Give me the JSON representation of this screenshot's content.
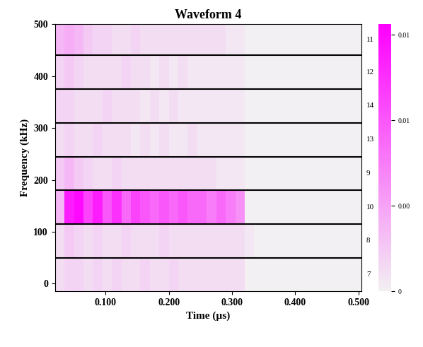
{
  "chart_data": {
    "type": "heatmap",
    "title": "Waveform 4",
    "x_label": "Time (µs)",
    "y_label": "Frequency (kHz)",
    "x_edges": [
      0.02,
      0.035,
      0.05,
      0.065,
      0.08,
      0.095,
      0.11,
      0.125,
      0.14,
      0.155,
      0.17,
      0.185,
      0.2,
      0.215,
      0.23,
      0.245,
      0.26,
      0.275,
      0.29,
      0.305,
      0.32,
      0.335,
      0.35,
      0.365,
      0.38,
      0.395,
      0.41,
      0.425,
      0.44,
      0.455,
      0.47,
      0.485,
      0.505
    ],
    "band_edges": [
      -15,
      50,
      115,
      180,
      245,
      310,
      375,
      440,
      500
    ],
    "band_labels": [
      7,
      8,
      10,
      9,
      13,
      14,
      12,
      11
    ],
    "cells": [
      [
        0.001,
        0.0015,
        0.0015,
        0.001,
        0.0015,
        0.001,
        0.0015,
        0.001,
        0.001,
        0.0015,
        0.001,
        0.001,
        0.0015,
        0.001,
        0.001,
        0.001,
        0.001,
        0.001,
        0.001,
        0.001,
        0,
        0,
        0,
        0,
        0,
        0,
        0,
        0,
        0,
        0,
        0,
        0
      ],
      [
        0.001,
        0.002,
        0.0015,
        0.001,
        0.0015,
        0.001,
        0.001,
        0.0015,
        0.001,
        0.001,
        0.001,
        0.0015,
        0.001,
        0.001,
        0.001,
        0.001,
        0.001,
        0.001,
        0.001,
        0.001,
        0.0005,
        0,
        0,
        0,
        0,
        0,
        0,
        0,
        0,
        0,
        0,
        0
      ],
      [
        0.003,
        0.011,
        0.012,
        0.009,
        0.011,
        0.008,
        0.01,
        0.007,
        0.009,
        0.008,
        0.007,
        0.008,
        0.007,
        0.008,
        0.007,
        0.007,
        0.006,
        0.007,
        0.006,
        0.005,
        0,
        0,
        0,
        0,
        0,
        0,
        0,
        0,
        0,
        0,
        0,
        0
      ],
      [
        0.002,
        0.003,
        0.002,
        0.0015,
        0.001,
        0.001,
        0.0015,
        0.001,
        0.001,
        0.001,
        0.001,
        0.001,
        0.001,
        0.001,
        0.001,
        0.001,
        0.001,
        0.0005,
        0.0005,
        0.0005,
        0,
        0,
        0,
        0,
        0,
        0,
        0,
        0,
        0,
        0,
        0,
        0
      ],
      [
        0.001,
        0.0015,
        0.001,
        0.001,
        0.0015,
        0.001,
        0.001,
        0.001,
        0.0005,
        0.001,
        0.0005,
        0.001,
        0.0005,
        0.0005,
        0.001,
        0.0005,
        0.0005,
        0.0005,
        0.0005,
        0.0005,
        0,
        0,
        0,
        0,
        0,
        0,
        0,
        0,
        0,
        0,
        0,
        0
      ],
      [
        0.0015,
        0.0015,
        0.001,
        0.001,
        0.001,
        0.0015,
        0.001,
        0.001,
        0.001,
        0.0005,
        0.001,
        0.0005,
        0.001,
        0.0005,
        0.0005,
        0.0005,
        0.0005,
        0.0005,
        0.0005,
        0.0005,
        0,
        0,
        0,
        0,
        0,
        0,
        0,
        0,
        0,
        0,
        0,
        0
      ],
      [
        0.0015,
        0.002,
        0.0015,
        0.001,
        0.001,
        0.001,
        0.001,
        0.0015,
        0.001,
        0.001,
        0.0005,
        0.001,
        0.0005,
        0.001,
        0.0005,
        0.0005,
        0.0005,
        0.0005,
        0.0005,
        0.0005,
        0,
        0,
        0,
        0,
        0,
        0,
        0,
        0,
        0,
        0,
        0,
        0
      ],
      [
        0.003,
        0.0035,
        0.003,
        0.002,
        0.0015,
        0.0015,
        0.001,
        0.001,
        0.0015,
        0.001,
        0.001,
        0.001,
        0.001,
        0.001,
        0.001,
        0.001,
        0.001,
        0.001,
        0.0005,
        0.0005,
        0,
        0,
        0,
        0,
        0,
        0,
        0,
        0,
        0,
        0,
        0,
        0
      ]
    ],
    "xlim": [
      0.02,
      0.505
    ],
    "ylim": [
      -15,
      500
    ],
    "xticks": [
      {
        "value": 0.1,
        "label": "0.100"
      },
      {
        "value": 0.2,
        "label": "0.200"
      },
      {
        "value": 0.3,
        "label": "0.300"
      },
      {
        "value": 0.4,
        "label": "0.400"
      },
      {
        "value": 0.5,
        "label": "0.500"
      }
    ],
    "yticks": [
      0,
      100,
      200,
      300,
      400,
      500
    ],
    "colorbar_range": [
      0,
      0.0125
    ],
    "colorbar_ticks": [
      0,
      {
        "value": 0.004,
        "label": "0.00"
      },
      {
        "value": 0.008,
        "label": "0.01"
      },
      {
        "value": 0.012,
        "label": "0.01"
      }
    ]
  }
}
